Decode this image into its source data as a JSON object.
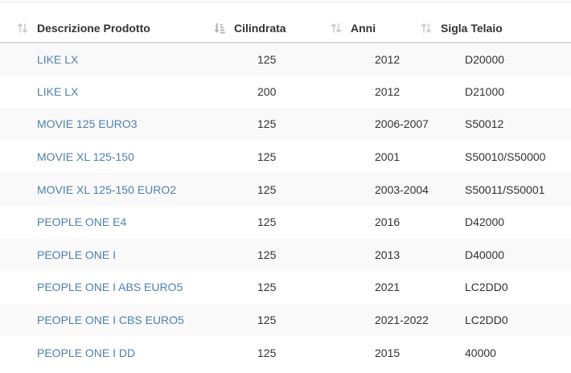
{
  "table": {
    "headers": [
      {
        "label": "Descrizione Prodotto",
        "sort": "none"
      },
      {
        "label": "Cilindrata",
        "sort": "ascending"
      },
      {
        "label": "Anni",
        "sort": "none"
      },
      {
        "label": "Sigla Telaio",
        "sort": "none"
      }
    ],
    "rows": [
      {
        "descrizione": "LIKE LX",
        "cilindrata": "125",
        "anni": "2012",
        "sigla": "D20000"
      },
      {
        "descrizione": "LIKE LX",
        "cilindrata": "200",
        "anni": "2012",
        "sigla": "D21000"
      },
      {
        "descrizione": "MOVIE 125 EURO3",
        "cilindrata": "125",
        "anni": "2006-2007",
        "sigla": "S50012"
      },
      {
        "descrizione": "MOVIE XL 125-150",
        "cilindrata": "125",
        "anni": "2001",
        "sigla": "S50010/S50000"
      },
      {
        "descrizione": "MOVIE XL 125-150 EURO2",
        "cilindrata": "125",
        "anni": "2003-2004",
        "sigla": "S50011/S50001"
      },
      {
        "descrizione": "PEOPLE ONE E4",
        "cilindrata": "125",
        "anni": "2016",
        "sigla": "D42000"
      },
      {
        "descrizione": "PEOPLE ONE I",
        "cilindrata": "125",
        "anni": "2013",
        "sigla": "D40000"
      },
      {
        "descrizione": "PEOPLE ONE I ABS EURO5",
        "cilindrata": "125",
        "anni": "2021",
        "sigla": "LC2DD0"
      },
      {
        "descrizione": "PEOPLE ONE I CBS EURO5",
        "cilindrata": "125",
        "anni": "2021-2022",
        "sigla": "LC2DD0"
      },
      {
        "descrizione": "PEOPLE ONE I DD",
        "cilindrata": "125",
        "anni": "2015",
        "sigla": "40000"
      }
    ]
  },
  "colors": {
    "link": "#4f81b0",
    "stripe": "#f9f9f9",
    "header_border": "#dcdcdc",
    "sort_icon": "#c4c4c4"
  }
}
